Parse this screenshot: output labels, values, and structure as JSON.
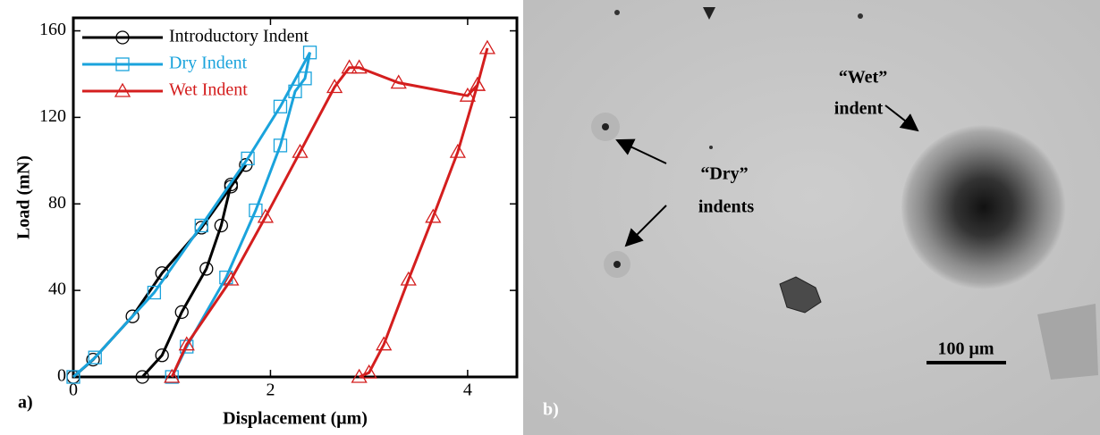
{
  "chart_data": {
    "type": "line",
    "panel_label": "a)",
    "xlabel": "Displacement (μm)",
    "ylabel": "Load (mN)",
    "xlim": [
      0,
      4.5
    ],
    "ylim": [
      0,
      166
    ],
    "xticks": [
      0,
      2,
      4
    ],
    "yticks": [
      0,
      40,
      80,
      120,
      160
    ],
    "legend": "upper left",
    "series": [
      {
        "name": "Introductory Indent",
        "color": "#000000",
        "marker": "circle",
        "x": [
          0,
          0.2,
          0.6,
          0.9,
          1.3,
          1.6,
          1.75,
          1.6,
          1.5,
          1.35,
          1.1,
          0.9,
          0.7
        ],
        "values": [
          0,
          8,
          28,
          48,
          69,
          88,
          98,
          89,
          70,
          50,
          30,
          10,
          0
        ]
      },
      {
        "name": "Dry Indent",
        "color": "#1aa3dc",
        "marker": "square",
        "x": [
          0,
          0.22,
          0.82,
          1.3,
          1.77,
          2.1,
          2.4,
          2.35,
          2.25,
          2.1,
          1.85,
          1.55,
          1.15,
          1.0
        ],
        "values": [
          0,
          9,
          39,
          70,
          101,
          125,
          150,
          138,
          132,
          107,
          77,
          46,
          14,
          0
        ]
      },
      {
        "name": "Wet Indent",
        "color": "#d41e1e",
        "marker": "triangle",
        "x": [
          1.0,
          1.15,
          1.6,
          1.95,
          2.3,
          2.65,
          2.8,
          2.9,
          3.3,
          4.0,
          4.1,
          4.2,
          4.1,
          3.9,
          3.65,
          3.4,
          3.15,
          3.0,
          2.9
        ],
        "values": [
          0,
          15,
          45,
          74,
          104,
          134,
          143,
          143,
          136,
          130,
          135,
          152,
          135,
          104,
          74,
          45,
          15,
          2,
          0
        ]
      }
    ]
  },
  "image": {
    "panel_label": "b)",
    "dry_label_line1": "“Dry”",
    "dry_label_line2": "indents",
    "wet_label_line1": "“Wet”",
    "wet_label_line2": "indent",
    "scale_label": "100 μm"
  }
}
